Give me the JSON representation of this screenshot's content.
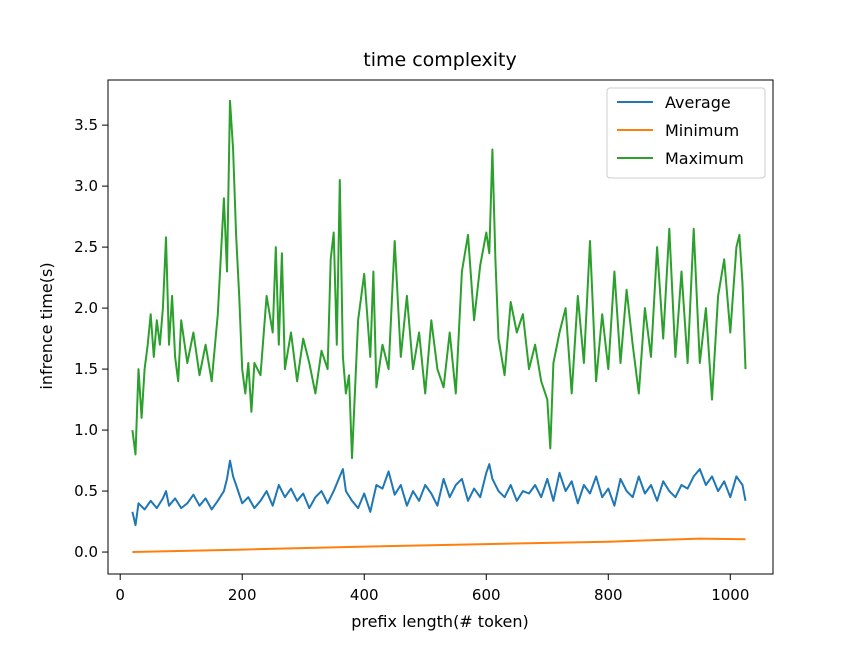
{
  "chart_data": {
    "type": "line",
    "title": "time complexity",
    "xlabel": "prefix length(# token)",
    "ylabel": "infrence time(s)",
    "xlim": [
      -20,
      1070
    ],
    "ylim": [
      -0.18,
      3.87
    ],
    "xticks": [
      0,
      200,
      400,
      600,
      800,
      1000
    ],
    "xtick_labels": [
      "0",
      "200",
      "400",
      "600",
      "800",
      "1000"
    ],
    "yticks": [
      0.0,
      0.5,
      1.0,
      1.5,
      2.0,
      2.5,
      3.0,
      3.5
    ],
    "ytick_labels": [
      "0.0",
      "0.5",
      "1.0",
      "1.5",
      "2.0",
      "2.5",
      "3.0",
      "3.5"
    ],
    "grid": false,
    "legend_position": "top-right",
    "series": [
      {
        "name": "Average",
        "color": "#1f77b4",
        "x": [
          20,
          25,
          30,
          40,
          50,
          60,
          70,
          75,
          80,
          90,
          100,
          110,
          120,
          130,
          140,
          150,
          160,
          170,
          175,
          180,
          185,
          190,
          200,
          210,
          220,
          230,
          240,
          250,
          260,
          270,
          280,
          290,
          300,
          310,
          320,
          330,
          340,
          350,
          360,
          365,
          370,
          380,
          390,
          400,
          410,
          420,
          430,
          440,
          450,
          460,
          470,
          480,
          490,
          500,
          510,
          520,
          530,
          540,
          550,
          560,
          570,
          580,
          590,
          600,
          605,
          610,
          620,
          630,
          640,
          650,
          660,
          670,
          680,
          690,
          700,
          710,
          720,
          730,
          740,
          750,
          760,
          770,
          780,
          790,
          800,
          810,
          820,
          830,
          840,
          850,
          860,
          870,
          880,
          890,
          900,
          910,
          920,
          930,
          940,
          950,
          960,
          970,
          980,
          990,
          1000,
          1010,
          1020,
          1025
        ],
        "y": [
          0.33,
          0.22,
          0.4,
          0.35,
          0.42,
          0.36,
          0.44,
          0.5,
          0.38,
          0.44,
          0.36,
          0.4,
          0.47,
          0.38,
          0.44,
          0.35,
          0.42,
          0.5,
          0.6,
          0.75,
          0.62,
          0.55,
          0.4,
          0.45,
          0.36,
          0.42,
          0.5,
          0.38,
          0.55,
          0.45,
          0.52,
          0.42,
          0.48,
          0.36,
          0.45,
          0.5,
          0.4,
          0.5,
          0.62,
          0.68,
          0.5,
          0.42,
          0.36,
          0.48,
          0.33,
          0.55,
          0.52,
          0.66,
          0.47,
          0.55,
          0.38,
          0.5,
          0.42,
          0.55,
          0.48,
          0.38,
          0.6,
          0.45,
          0.55,
          0.6,
          0.42,
          0.52,
          0.45,
          0.65,
          0.72,
          0.6,
          0.5,
          0.45,
          0.55,
          0.42,
          0.5,
          0.48,
          0.55,
          0.45,
          0.6,
          0.42,
          0.65,
          0.5,
          0.58,
          0.4,
          0.55,
          0.48,
          0.62,
          0.45,
          0.52,
          0.38,
          0.6,
          0.5,
          0.45,
          0.62,
          0.48,
          0.55,
          0.42,
          0.58,
          0.5,
          0.45,
          0.55,
          0.52,
          0.62,
          0.68,
          0.55,
          0.62,
          0.5,
          0.58,
          0.45,
          0.62,
          0.55,
          0.42
        ]
      },
      {
        "name": "Minimum",
        "color": "#ff7f0e",
        "x": [
          20,
          200,
          400,
          600,
          800,
          950,
          1025
        ],
        "y": [
          0.0,
          0.02,
          0.045,
          0.065,
          0.085,
          0.11,
          0.105
        ]
      },
      {
        "name": "Maximum",
        "color": "#2ca02c",
        "x": [
          20,
          25,
          30,
          35,
          40,
          45,
          50,
          55,
          60,
          65,
          70,
          75,
          80,
          85,
          90,
          95,
          100,
          110,
          120,
          130,
          140,
          150,
          160,
          170,
          175,
          180,
          185,
          190,
          195,
          200,
          205,
          210,
          215,
          220,
          230,
          240,
          250,
          255,
          260,
          265,
          270,
          280,
          290,
          300,
          310,
          320,
          330,
          340,
          345,
          350,
          355,
          360,
          365,
          370,
          375,
          380,
          390,
          400,
          410,
          415,
          420,
          430,
          440,
          450,
          460,
          470,
          480,
          490,
          500,
          510,
          520,
          530,
          540,
          550,
          560,
          570,
          580,
          590,
          600,
          605,
          610,
          615,
          620,
          630,
          640,
          650,
          660,
          670,
          680,
          690,
          700,
          705,
          710,
          720,
          730,
          740,
          750,
          760,
          770,
          780,
          790,
          800,
          810,
          820,
          830,
          840,
          850,
          860,
          870,
          880,
          890,
          900,
          910,
          920,
          930,
          940,
          950,
          960,
          970,
          980,
          990,
          1000,
          1010,
          1015,
          1020,
          1025
        ],
        "y": [
          1.0,
          0.8,
          1.5,
          1.1,
          1.5,
          1.7,
          1.95,
          1.6,
          1.9,
          1.7,
          2.0,
          2.58,
          1.7,
          2.1,
          1.6,
          1.4,
          1.9,
          1.55,
          1.8,
          1.45,
          1.7,
          1.4,
          1.95,
          2.9,
          2.3,
          3.7,
          3.3,
          2.6,
          2.1,
          1.5,
          1.3,
          1.55,
          1.15,
          1.55,
          1.45,
          2.1,
          1.8,
          2.5,
          1.7,
          2.45,
          1.5,
          1.8,
          1.4,
          1.75,
          1.55,
          1.3,
          1.65,
          1.5,
          2.4,
          2.62,
          1.7,
          3.05,
          1.6,
          1.3,
          1.45,
          0.77,
          1.9,
          2.28,
          1.6,
          2.3,
          1.35,
          1.7,
          1.5,
          2.55,
          1.6,
          2.1,
          1.5,
          1.8,
          1.3,
          1.9,
          1.5,
          1.35,
          1.8,
          1.3,
          2.3,
          2.6,
          1.9,
          2.35,
          2.62,
          2.45,
          3.3,
          2.4,
          1.75,
          1.45,
          2.05,
          1.8,
          1.95,
          1.5,
          1.7,
          1.4,
          1.25,
          0.85,
          1.55,
          1.8,
          2.0,
          1.3,
          2.1,
          1.55,
          2.55,
          1.4,
          1.95,
          1.5,
          2.3,
          1.55,
          2.15,
          1.7,
          1.3,
          2.0,
          1.6,
          2.5,
          1.75,
          2.65,
          1.6,
          2.3,
          1.55,
          2.65,
          1.55,
          2.0,
          1.25,
          2.1,
          2.4,
          1.8,
          2.5,
          2.6,
          2.2,
          1.5
        ]
      }
    ]
  }
}
